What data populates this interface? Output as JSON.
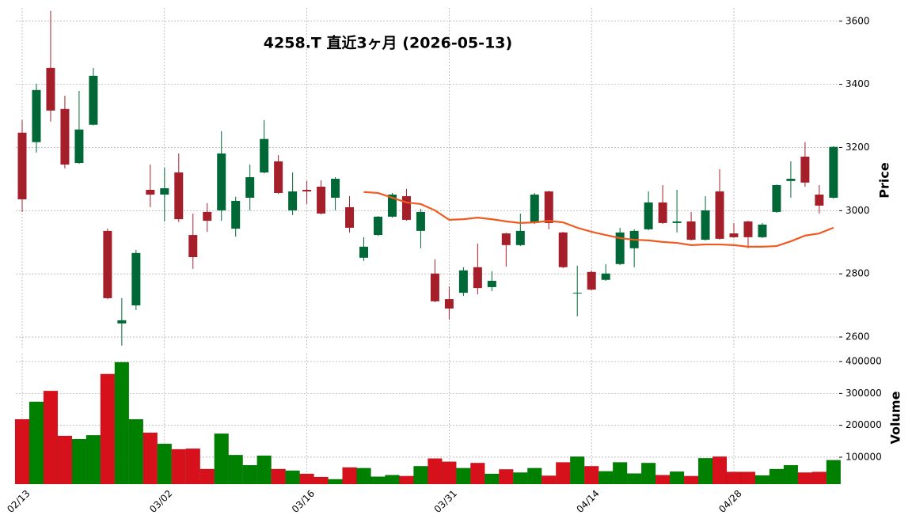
{
  "chart_data": [
    {
      "type": "candlestick",
      "title": "4258.T  直近3ヶ月  (2026-05-13)",
      "y_label": "Price",
      "categories": [
        "02/13",
        null,
        null,
        null,
        null,
        null,
        null,
        null,
        null,
        null,
        "03/02",
        null,
        null,
        null,
        null,
        null,
        null,
        null,
        null,
        null,
        "03/16",
        null,
        null,
        null,
        null,
        null,
        null,
        null,
        null,
        null,
        "03/31",
        null,
        null,
        null,
        null,
        null,
        null,
        null,
        null,
        null,
        "04/14",
        null,
        null,
        null,
        null,
        null,
        null,
        null,
        null,
        null,
        "04/28",
        null,
        null,
        null,
        null,
        null,
        null,
        null
      ],
      "open": [
        3247,
        3217,
        3452,
        3322,
        3151,
        3272,
        2936,
        2643,
        2700,
        3066,
        3051,
        3121,
        2923,
        2996,
        3001,
        2943,
        3041,
        3121,
        3156,
        3001,
        3066,
        3076,
        3041,
        3011,
        2851,
        2923,
        2981,
        3046,
        2936,
        2801,
        2720,
        2740,
        2821,
        2758,
        2928,
        2891,
        2961,
        3061,
        2931,
        2738,
        2806,
        2781,
        2831,
        2881,
        2941,
        3026,
        2961,
        2966,
        2908,
        3061,
        2928,
        2966,
        2916,
        2996,
        3094,
        3171,
        3051,
        3041
      ],
      "high": [
        3287,
        3402,
        3633,
        3364,
        3379,
        3452,
        2943,
        2723,
        2876,
        3146,
        3136,
        3181,
        2991,
        3024,
        3252,
        3044,
        3146,
        3287,
        3176,
        3121,
        3094,
        3096,
        3106,
        3046,
        2916,
        2983,
        3056,
        3069,
        3006,
        2846,
        2760,
        2821,
        2896,
        2808,
        2930,
        2991,
        3056,
        3063,
        2933,
        2826,
        2811,
        2831,
        2946,
        2941,
        3061,
        3081,
        3066,
        2996,
        3046,
        3131,
        2961,
        2968,
        2961,
        3083,
        3156,
        3217,
        3081,
        3204
      ],
      "low": [
        2996,
        3184,
        3282,
        3134,
        3148,
        3270,
        2720,
        2573,
        2685,
        3011,
        2966,
        2964,
        2816,
        2933,
        2968,
        2918,
        3001,
        3118,
        3053,
        2986,
        3021,
        2988,
        3001,
        2931,
        2841,
        2920,
        2978,
        2968,
        2881,
        2710,
        2655,
        2730,
        2735,
        2745,
        2823,
        2888,
        2958,
        2941,
        2818,
        2665,
        2748,
        2778,
        2828,
        2821,
        2938,
        2958,
        2931,
        2905,
        2905,
        2908,
        2913,
        2881,
        2913,
        2993,
        3041,
        3076,
        2991,
        3038
      ],
      "close": [
        3036,
        3382,
        3317,
        3146,
        3257,
        3427,
        2723,
        2653,
        2866,
        3051,
        3071,
        2973,
        2853,
        2968,
        3181,
        3031,
        3106,
        3227,
        3056,
        3061,
        3061,
        2991,
        3101,
        2946,
        2886,
        2981,
        3051,
        2971,
        2996,
        2713,
        2690,
        2811,
        2755,
        2778,
        2891,
        2936,
        3051,
        2961,
        2821,
        2740,
        2750,
        2801,
        2931,
        2936,
        3026,
        2961,
        2966,
        2908,
        3001,
        2911,
        2916,
        2916,
        2956,
        3081,
        3101,
        3089,
        3016,
        3202
      ],
      "ma": {
        "color": "#f05a1e",
        "values": [
          null,
          null,
          null,
          null,
          null,
          null,
          null,
          null,
          null,
          null,
          null,
          null,
          null,
          null,
          null,
          null,
          null,
          null,
          null,
          null,
          null,
          null,
          null,
          null,
          3059,
          3056,
          3041,
          3026,
          3021,
          3001,
          2971,
          2973,
          2978,
          2973,
          2966,
          2961,
          2963,
          2968,
          2963,
          2946,
          2933,
          2923,
          2913,
          2908,
          2906,
          2901,
          2898,
          2891,
          2893,
          2893,
          2891,
          2886,
          2886,
          2888,
          2903,
          2921,
          2928,
          2946
        ]
      },
      "up_color": "#006837",
      "down_color": "#a51f2a",
      "ylim": [
        2565,
        3642
      ],
      "yticks": [
        2600,
        2800,
        3000,
        3200,
        3400,
        3600
      ],
      "grid": true
    },
    {
      "type": "bar",
      "y_label": "Volume",
      "values": [
        219000,
        274000,
        308000,
        167000,
        157000,
        169000,
        361000,
        398000,
        219000,
        177000,
        142000,
        125000,
        127000,
        63000,
        174000,
        107000,
        75000,
        105000,
        63000,
        58000,
        48000,
        38000,
        31000,
        68000,
        66000,
        39000,
        44000,
        41000,
        72000,
        96000,
        86000,
        66000,
        82000,
        48000,
        62000,
        52000,
        66000,
        42000,
        84000,
        102000,
        72000,
        56000,
        84000,
        49000,
        82000,
        44000,
        55000,
        41000,
        97000,
        102000,
        54000,
        54000,
        43000,
        63000,
        75000,
        52000,
        54000,
        91000
      ],
      "up_color": "#008000",
      "down_color": "#d7111c",
      "ylim": [
        15600,
        425000
      ],
      "yticks": [
        100000,
        200000,
        300000,
        400000
      ],
      "grid": true
    }
  ]
}
